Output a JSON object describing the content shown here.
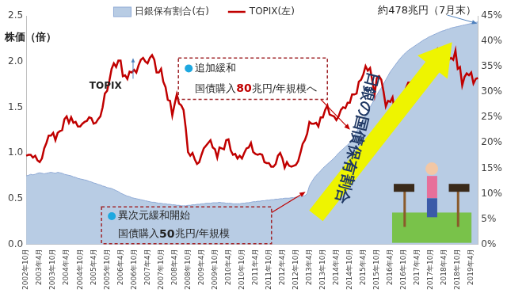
{
  "chart_data": {
    "type": "line",
    "y_label": "株価（倍）",
    "legend": "top",
    "grid": false,
    "categories": [
      "2002年10月",
      null,
      null,
      null,
      null,
      null,
      "2003年4月",
      null,
      null,
      null,
      null,
      null,
      "2003年10月",
      null,
      null,
      null,
      null,
      null,
      "2004年4月",
      null,
      null,
      null,
      null,
      null,
      "2004年10月",
      null,
      null,
      null,
      null,
      null,
      "2005年4月",
      null,
      null,
      null,
      null,
      null,
      "2005年10月",
      null,
      null,
      null,
      null,
      null,
      "2006年4月",
      null,
      null,
      null,
      null,
      null,
      "2006年10月",
      null,
      null,
      null,
      null,
      null,
      "2007年4月",
      null,
      null,
      null,
      null,
      null,
      "2007年10月",
      null,
      null,
      null,
      null,
      null,
      "2008年4月",
      null,
      null,
      null,
      null,
      null,
      "2008年10月",
      null,
      null,
      null,
      null,
      null,
      "2009年4月",
      null,
      null,
      null,
      null,
      null,
      "2009年10月",
      null,
      null,
      null,
      null,
      null,
      "2010年4月",
      null,
      null,
      null,
      null,
      null,
      "2010年10月",
      null,
      null,
      null,
      null,
      null,
      "2011年4月",
      null,
      null,
      null,
      null,
      null,
      "2011年10月",
      null,
      null,
      null,
      null,
      null,
      "2012年4月",
      null,
      null,
      null,
      null,
      null,
      "2012年10月",
      null,
      null,
      null,
      null,
      null,
      "2013年4月",
      null,
      null,
      null,
      null,
      null,
      "2013年10月",
      null,
      null,
      null,
      null,
      null,
      "2014年4月",
      null,
      null,
      null,
      null,
      null,
      "2014年10月",
      null,
      null,
      null,
      null,
      null,
      "2015年4月",
      null,
      null,
      null,
      null,
      null,
      "2015年10月",
      null,
      null,
      null,
      null,
      null,
      "2016年4月",
      null,
      null,
      null,
      null,
      null,
      "2016年10月",
      null,
      null,
      null,
      null,
      null,
      "2017年4月",
      null,
      null,
      null,
      null,
      null,
      "2017年10月",
      null,
      null,
      null,
      null,
      null,
      "2018年4月",
      null,
      null,
      null,
      null,
      null,
      "2018年10月",
      null,
      null,
      null,
      null,
      null,
      "2019年4月",
      null,
      null,
      null
    ],
    "series": [
      {
        "name": "日銀保有割合(右)",
        "type": "area",
        "axis": "y2",
        "color": "#b8cce4",
        "values": [
          13.5,
          13.6,
          13.8,
          13.7,
          13.8,
          14.0,
          14.1,
          14.0,
          13.9,
          14.0,
          14.1,
          14.2,
          14.1,
          14.0,
          14.2,
          14.1,
          14.0,
          13.8,
          13.7,
          13.6,
          13.5,
          13.3,
          13.2,
          13.0,
          12.9,
          12.8,
          12.7,
          12.6,
          12.4,
          12.3,
          12.1,
          12.0,
          11.8,
          11.7,
          11.5,
          11.4,
          11.2,
          11.1,
          11.0,
          10.8,
          10.6,
          10.4,
          10.1,
          9.9,
          9.7,
          9.5,
          9.4,
          9.2,
          9.1,
          9.0,
          8.9,
          8.8,
          8.7,
          8.6,
          8.5,
          8.4,
          8.3,
          8.3,
          8.2,
          8.1,
          8.1,
          8.0,
          8.0,
          7.9,
          7.9,
          7.8,
          7.8,
          7.7,
          7.7,
          7.6,
          7.6,
          7.6,
          7.7,
          7.7,
          7.8,
          7.8,
          7.9,
          7.9,
          8.0,
          8.0,
          8.1,
          8.1,
          8.1,
          8.2,
          8.2,
          8.2,
          8.3,
          8.2,
          8.2,
          8.1,
          8.1,
          8.1,
          8.0,
          8.0,
          8.0,
          8.0,
          8.1,
          8.1,
          8.2,
          8.2,
          8.3,
          8.4,
          8.4,
          8.5,
          8.5,
          8.6,
          8.6,
          8.7,
          8.7,
          8.8,
          8.8,
          8.9,
          8.9,
          9.0,
          9.0,
          9.1,
          9.1,
          9.1,
          9.2,
          9.2,
          9.3,
          9.3,
          9.4,
          9.5,
          9.6,
          10.0,
          11.5,
          12.3,
          13.0,
          13.6,
          14.0,
          14.5,
          15.0,
          15.4,
          15.8,
          16.2,
          16.6,
          17.0,
          17.5,
          18.0,
          18.4,
          18.8,
          19.2,
          19.6,
          20.0,
          20.6,
          21.4,
          22.2,
          23.0,
          23.8,
          24.6,
          25.4,
          26.2,
          27.0,
          27.8,
          28.6,
          29.4,
          30.2,
          30.8,
          31.6,
          32.4,
          33.2,
          34.0,
          34.6,
          35.2,
          35.8,
          36.4,
          36.9,
          37.4,
          37.8,
          38.2,
          38.5,
          38.8,
          39.1,
          39.4,
          39.7,
          40.0,
          40.3,
          40.5,
          40.8,
          41.0,
          41.2,
          41.4,
          41.6,
          41.8,
          42.0,
          42.1,
          42.3,
          42.4,
          42.6,
          42.7,
          42.8,
          42.9,
          43.0,
          43.1,
          43.2,
          43.3,
          43.4,
          43.5,
          43.6,
          43.7,
          43.8
        ]
      },
      {
        "name": "TOPIX(左)",
        "type": "line",
        "color": "#c00000",
        "values": [
          0.97,
          0.98,
          0.98,
          0.95,
          0.97,
          0.92,
          0.9,
          0.94,
          1.05,
          1.11,
          1.19,
          1.19,
          1.22,
          1.14,
          1.22,
          1.24,
          1.25,
          1.37,
          1.4,
          1.33,
          1.39,
          1.33,
          1.34,
          1.29,
          1.29,
          1.32,
          1.34,
          1.35,
          1.39,
          1.38,
          1.32,
          1.33,
          1.37,
          1.4,
          1.5,
          1.65,
          1.68,
          1.79,
          1.92,
          1.98,
          1.94,
          2.01,
          2.01,
          1.84,
          1.85,
          1.81,
          1.89,
          1.88,
          1.91,
          1.88,
          1.96,
          2.02,
          2.04,
          2.0,
          1.98,
          2.04,
          2.07,
          2.02,
          1.88,
          1.88,
          1.92,
          1.78,
          1.72,
          1.58,
          1.57,
          1.41,
          1.53,
          1.64,
          1.54,
          1.52,
          1.47,
          1.27,
          1.01,
          0.97,
          1.0,
          0.93,
          0.88,
          0.9,
          0.98,
          1.05,
          1.08,
          1.11,
          1.14,
          1.06,
          1.04,
          0.95,
          1.06,
          1.05,
          1.04,
          1.14,
          1.15,
          1.03,
          0.98,
          0.99,
          0.94,
          0.97,
          0.94,
          1.0,
          1.05,
          1.06,
          1.11,
          1.01,
          0.99,
          0.98,
          0.99,
          0.98,
          0.9,
          0.89,
          0.89,
          0.85,
          0.85,
          0.88,
          0.97,
          1.0,
          0.94,
          0.84,
          0.9,
          0.86,
          0.85,
          0.86,
          0.87,
          0.91,
          1.0,
          1.1,
          1.14,
          1.21,
          1.34,
          1.32,
          1.32,
          1.33,
          1.29,
          1.39,
          1.39,
          1.47,
          1.52,
          1.42,
          1.41,
          1.4,
          1.36,
          1.4,
          1.47,
          1.5,
          1.49,
          1.55,
          1.55,
          1.64,
          1.64,
          1.65,
          1.78,
          1.8,
          1.86,
          1.95,
          1.9,
          1.93,
          1.79,
          1.64,
          1.82,
          1.84,
          1.8,
          1.67,
          1.51,
          1.57,
          1.56,
          1.61,
          1.45,
          1.54,
          1.55,
          1.54,
          1.62,
          1.71,
          1.77,
          1.77,
          1.79,
          1.76,
          1.78,
          1.83,
          1.88,
          1.89,
          1.88,
          1.95,
          2.06,
          2.09,
          2.12,
          2.14,
          2.06,
          2.0,
          2.07,
          2.04,
          2.02,
          2.04,
          2.02,
          2.12,
          1.92,
          1.94,
          1.74,
          1.83,
          1.87,
          1.85,
          1.88,
          1.76,
          1.81,
          1.82
        ]
      }
    ],
    "ylim": [
      0,
      2.5
    ],
    "yticks": [
      {
        "value": 0,
        "label": "0.0"
      },
      0.5,
      {
        "value": 1,
        "label": "1.0"
      },
      1.5,
      {
        "value": 2,
        "label": "2.0"
      },
      2.5
    ],
    "y2lim": [
      0,
      45
    ],
    "y2ticks": [
      {
        "value": 0,
        "label": "0%"
      },
      {
        "value": 5,
        "label": "5%"
      },
      {
        "value": 10,
        "label": "10%"
      },
      {
        "value": 15,
        "label": "15%"
      },
      {
        "value": 20,
        "label": "20%"
      },
      {
        "value": 25,
        "label": "25%"
      },
      {
        "value": 30,
        "label": "30%"
      },
      {
        "value": 35,
        "label": "35%"
      },
      {
        "value": 40,
        "label": "40%"
      },
      {
        "value": 45,
        "label": "45%"
      }
    ],
    "annotations": [
      {
        "text": "約478兆円（7月末）"
      },
      {
        "lines": [
          [
            "追加緩和"
          ],
          [
            "国債購入",
            "80",
            "兆円/年規模へ"
          ]
        ]
      },
      {
        "lines": [
          [
            "異次元緩和開始"
          ],
          [
            "国債購入",
            "50",
            "兆円/年規模"
          ]
        ]
      },
      {
        "text": "TOPIX"
      },
      {
        "text": "日銀の国債保有割合"
      }
    ]
  }
}
